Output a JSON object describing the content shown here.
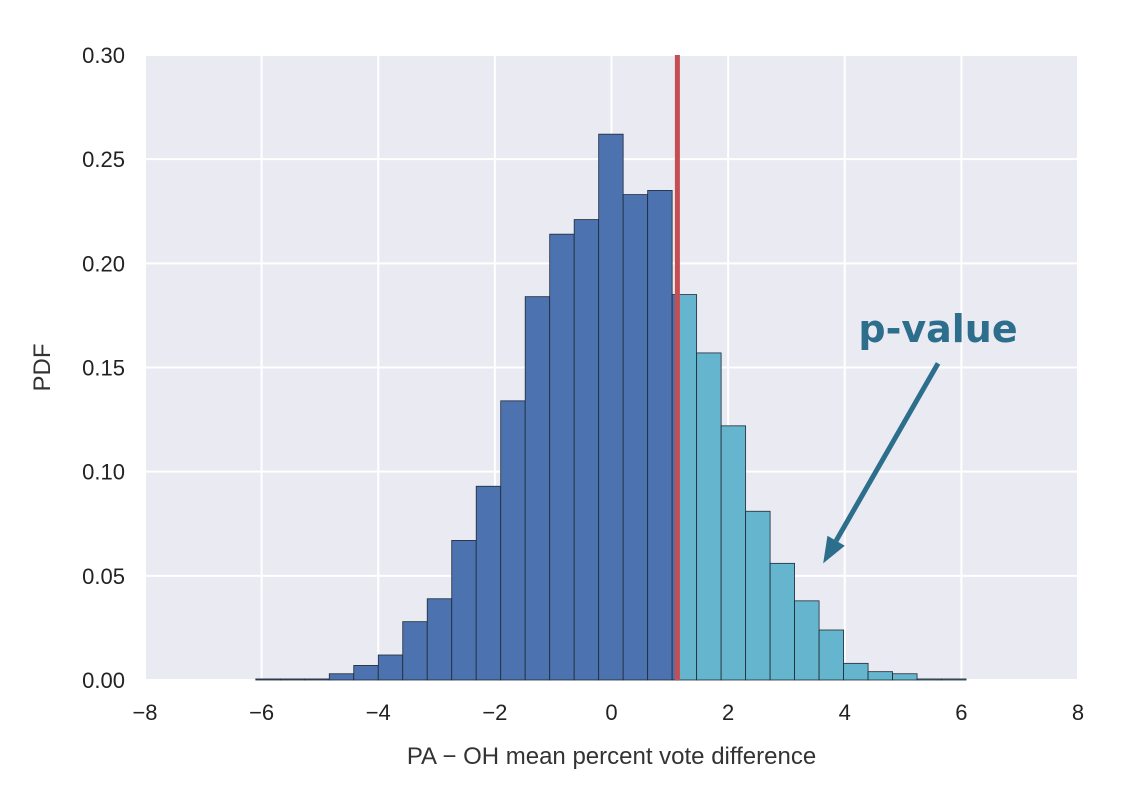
{
  "chart_data": {
    "type": "bar",
    "title": "",
    "xlabel": "PA − OH mean percent vote difference",
    "ylabel": "PDF",
    "xlim": [
      -8,
      8
    ],
    "ylim": [
      0,
      0.3
    ],
    "grid": true,
    "xticks": [
      -8,
      -6,
      -4,
      -2,
      0,
      2,
      4,
      6,
      8
    ],
    "xtick_labels": [
      "−8",
      "−6",
      "−4",
      "−2",
      "0",
      "2",
      "4",
      "6",
      "8"
    ],
    "yticks": [
      0,
      0.05,
      0.1,
      0.15,
      0.2,
      0.25,
      0.3
    ],
    "ytick_labels": [
      "0.00",
      "0.05",
      "0.10",
      "0.15",
      "0.20",
      "0.25",
      "0.30"
    ],
    "bin_edges": [
      -6.1,
      -5.68,
      -5.26,
      -4.84,
      -4.42,
      -4.0,
      -3.58,
      -3.16,
      -2.74,
      -2.32,
      -1.9,
      -1.48,
      -1.06,
      -0.64,
      -0.22,
      0.2,
      0.62,
      1.04,
      1.46,
      1.88,
      2.3,
      2.72,
      3.14,
      3.56,
      3.98,
      4.4,
      4.82,
      5.24,
      5.66,
      6.08
    ],
    "values": [
      0.0005,
      0.0005,
      0.0005,
      0.003,
      0.007,
      0.012,
      0.028,
      0.039,
      0.067,
      0.093,
      0.134,
      0.184,
      0.214,
      0.221,
      0.262,
      0.233,
      0.235,
      0.185,
      0.157,
      0.122,
      0.081,
      0.056,
      0.038,
      0.024,
      0.008,
      0.004,
      0.003,
      0.0005,
      0.0005
    ],
    "threshold": 1.13,
    "colors": {
      "below": "#4c72b0",
      "above": "#64b5cd",
      "threshold_line": "#c44e52",
      "background": "#eaeaf2",
      "grid": "#ffffff",
      "annotation": "#2c6e8c"
    },
    "annotation": {
      "text": "p-value",
      "arrow_from": [
        5.6,
        0.152
      ],
      "arrow_to": [
        3.63,
        0.056
      ]
    }
  }
}
